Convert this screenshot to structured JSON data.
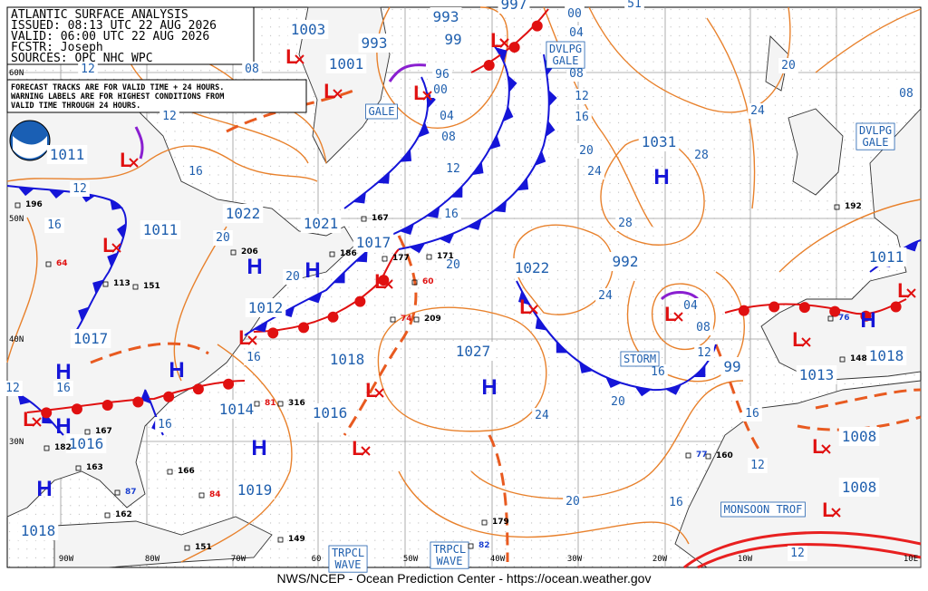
{
  "header": {
    "lines": [
      "ATLANTIC SURFACE ANALYSIS",
      "ISSUED: 08:13 UTC 22 AUG 2026",
      "VALID:  06:00 UTC 22 AUG 2026",
      "FCSTR:  Joseph",
      "SOURCES: OPC NHC WPC"
    ]
  },
  "note": {
    "lines": [
      "FORECAST TRACKS ARE FOR VALID TIME + 24 HOURS.",
      "WARNING LABELS ARE FOR HIGHEST CONDITIONS FROM",
      "VALID TIME THROUGH 24 HOURS."
    ]
  },
  "latitudes": [
    "60N",
    "50N",
    "40N",
    "30N"
  ],
  "longitudes": [
    "90W",
    "80W",
    "70W",
    "60",
    "50W",
    "40W",
    "30W",
    "20W",
    "10W",
    "10E"
  ],
  "centers": [
    {
      "symbol": "L",
      "pressure": 1003
    },
    {
      "symbol": "L",
      "pressure": 1001
    },
    {
      "symbol": "L",
      "pressure": 993
    },
    {
      "symbol": "L",
      "pressure": 993
    },
    {
      "pressure": 99
    },
    {
      "pressure": 997
    },
    {
      "symbol": "L",
      "pressure": 1011
    },
    {
      "symbol": "L",
      "pressure": 1011
    },
    {
      "symbol": "H",
      "pressure": 1022
    },
    {
      "symbol": "H",
      "pressure": 1021
    },
    {
      "symbol": "L",
      "pressure": 1017
    },
    {
      "symbol": "L",
      "pressure": 1012
    },
    {
      "symbol": "H",
      "pressure": 1017
    },
    {
      "symbol": "L",
      "pressure": 1018
    },
    {
      "symbol": "L",
      "pressure": 1016
    },
    {
      "symbol": "H",
      "pressure": 1014
    },
    {
      "pressure": 1019
    },
    {
      "symbol": "H",
      "pressure": 1016
    },
    {
      "pressure": 1018
    },
    {
      "symbol": "L",
      "pressure": 1022
    },
    {
      "symbol": "H",
      "pressure": 1027
    },
    {
      "symbol": "L",
      "pressure": 992
    },
    {
      "symbol": "H",
      "pressure": 1031
    },
    {
      "symbol": "L",
      "pressure": 1011
    },
    {
      "symbol": "H",
      "pressure": 1018
    },
    {
      "symbol": "L",
      "pressure": 1013
    },
    {
      "pressure": 99
    },
    {
      "symbol": "L",
      "pressure": 1008
    },
    {
      "symbol": "L",
      "pressure": 1008
    },
    {
      "symbol": "H"
    },
    {
      "symbol": "L"
    },
    {
      "symbol": "H"
    },
    {
      "symbol": "L"
    }
  ],
  "isobar_labels": [
    "12",
    "08",
    "12",
    "16",
    "12",
    "16",
    "20",
    "20",
    "16",
    "16",
    "16",
    "04",
    "08",
    "12",
    "16",
    "20",
    "00",
    "04",
    "08",
    "12",
    "16",
    "20",
    "24",
    "28",
    "24",
    "28",
    "20",
    "24",
    "16",
    "20",
    "24",
    "20",
    "16",
    "12",
    "16",
    "12",
    "04",
    "08",
    "12",
    "96",
    "00",
    "08",
    "51",
    "12"
  ],
  "warnings": [
    "GALE",
    "DVLPG\nGALE",
    "DVLPG\nGALE",
    "STORM",
    "TRPCL\nWAVE",
    "TRPCL\nWAVE",
    "MONSOON TROF"
  ],
  "stations": [
    "196",
    "167",
    "206",
    "186",
    "177",
    "171",
    "209",
    "113",
    "151",
    "316",
    "167",
    "182",
    "163",
    "166",
    "162",
    "149",
    "151",
    "179",
    "148",
    "160",
    "192",
    "84",
    "81",
    "74",
    "64",
    "60",
    "76",
    "77",
    "87",
    "82"
  ],
  "footer": "NWS/NCEP - Ocean Prediction Center - https://ocean.weather.gov"
}
